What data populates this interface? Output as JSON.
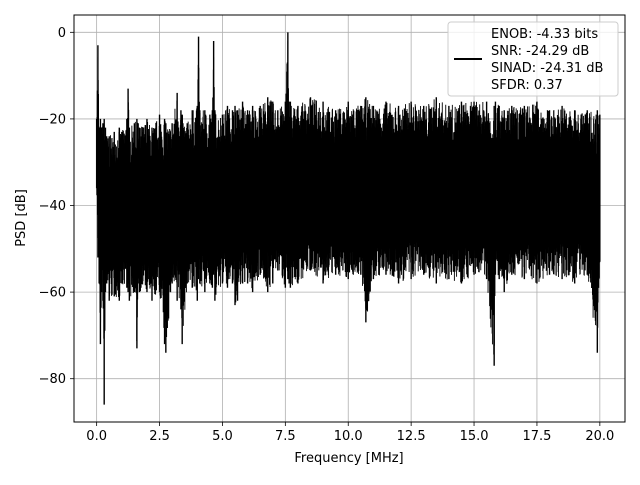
{
  "chart_data": {
    "type": "line",
    "xlabel": "Frequency [MHz]",
    "ylabel": "PSD [dB]",
    "xlim": [
      -0.9,
      21.0
    ],
    "ylim": [
      -90,
      4
    ],
    "grid": true,
    "legend_position": "top-right",
    "x_ticks": [
      0.0,
      2.5,
      5.0,
      7.5,
      10.0,
      12.5,
      15.0,
      17.5,
      20.0
    ],
    "x_tick_labels": [
      "0.0",
      "2.5",
      "5.0",
      "7.5",
      "10.0",
      "12.5",
      "15.0",
      "17.5",
      "20.0"
    ],
    "y_ticks": [
      0,
      -20,
      -40,
      -60,
      -80
    ],
    "y_tick_labels": [
      "0",
      "−20",
      "−40",
      "−60",
      "−80"
    ],
    "legend": [
      "ENOB: -4.33 bits",
      "SNR: -24.29 dB",
      "SINAD: -24.31 dB",
      "SFDR: 0.37"
    ],
    "series": [
      {
        "color": "#000000",
        "x": [
          0.0,
          0.05,
          0.1,
          0.15,
          0.2,
          0.25,
          0.3,
          0.35,
          0.4,
          0.5,
          0.7,
          0.9,
          1.0,
          1.2,
          1.25,
          1.3,
          1.5,
          1.6,
          1.65,
          1.7,
          2.0,
          2.2,
          2.5,
          2.7,
          2.75,
          3.0,
          3.2,
          3.35,
          3.4,
          3.6,
          3.8,
          4.0,
          4.05,
          4.1,
          4.3,
          4.5,
          4.6,
          4.65,
          4.7,
          5.0,
          5.2,
          5.4,
          5.5,
          5.6,
          5.8,
          6.0,
          6.2,
          6.5,
          6.8,
          7.0,
          7.2,
          7.5,
          7.6,
          7.65,
          7.7,
          8.0,
          8.5,
          9.0,
          9.5,
          10.0,
          10.5,
          10.7,
          11.0,
          11.5,
          12.0,
          12.5,
          13.0,
          13.5,
          14.0,
          14.5,
          15.0,
          15.5,
          15.8,
          15.85,
          16.0,
          16.2,
          16.5,
          17.0,
          17.5,
          18.0,
          18.5,
          19.0,
          19.5,
          19.9,
          20.0
        ],
        "upper": [
          -20,
          -3,
          -22,
          -20,
          -22,
          -21,
          -20,
          -22,
          -24,
          -24,
          -23,
          -22,
          -23,
          -20,
          -13,
          -22,
          -21,
          -20,
          -21,
          -22,
          -20,
          -22,
          -19,
          -20,
          -21,
          -21,
          -14,
          -18,
          -19,
          -21,
          -18,
          -17,
          -1,
          -18,
          -18,
          -19,
          -18,
          -2,
          -18,
          -19,
          -17,
          -18,
          -17,
          -18,
          -16,
          -18,
          -17,
          -17,
          -15,
          -16,
          -18,
          -16,
          0,
          -16,
          -16,
          -17,
          -15,
          -16,
          -18,
          -16,
          -17,
          -15,
          -17,
          -16,
          -17,
          -16,
          -17,
          -15,
          -17,
          -16,
          -16,
          -16,
          -17,
          -16,
          -17,
          -18,
          -17,
          -17,
          -16,
          -18,
          -17,
          -18,
          -18,
          -18,
          -19
        ],
        "lower": [
          -36,
          -52,
          -58,
          -72,
          -60,
          -62,
          -86,
          -60,
          -58,
          -62,
          -61,
          -62,
          -58,
          -59,
          -60,
          -62,
          -60,
          -73,
          -58,
          -60,
          -60,
          -62,
          -60,
          -72,
          -74,
          -58,
          -62,
          -64,
          -72,
          -58,
          -59,
          -62,
          -57,
          -58,
          -60,
          -58,
          -59,
          -56,
          -62,
          -58,
          -59,
          -58,
          -63,
          -62,
          -58,
          -58,
          -60,
          -56,
          -60,
          -58,
          -55,
          -59,
          -57,
          -58,
          -59,
          -58,
          -55,
          -58,
          -56,
          -57,
          -56,
          -67,
          -57,
          -56,
          -58,
          -57,
          -56,
          -58,
          -57,
          -58,
          -56,
          -57,
          -77,
          -56,
          -57,
          -60,
          -56,
          -57,
          -58,
          -56,
          -57,
          -58,
          -56,
          -74,
          -53
        ]
      }
    ]
  }
}
